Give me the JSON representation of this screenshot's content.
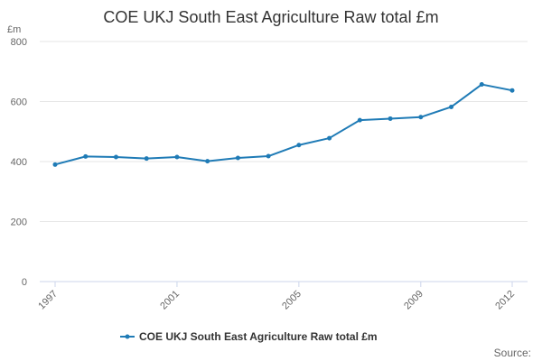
{
  "chart_data": {
    "type": "line",
    "title": "COE UKJ South East Agriculture Raw total £m",
    "ylabel": "£m",
    "xlabel": "",
    "ylim": [
      0,
      800
    ],
    "yticks": [
      0,
      200,
      400,
      600,
      800
    ],
    "xticks": [
      "1997",
      "2001",
      "2005",
      "2009",
      "2012"
    ],
    "x": [
      1997,
      1998,
      1999,
      2000,
      2001,
      2002,
      2003,
      2004,
      2005,
      2006,
      2007,
      2008,
      2009,
      2010,
      2011,
      2012
    ],
    "series": [
      {
        "name": "COE UKJ South East Agriculture Raw total £m",
        "color": "#1f7bb6",
        "values": [
          390,
          417,
          415,
          410,
          415,
          401,
          412,
          418,
          455,
          478,
          538,
          543,
          548,
          582,
          657,
          637
        ]
      }
    ],
    "legend": "bottom-center",
    "grid": true,
    "credits": "Source:"
  }
}
